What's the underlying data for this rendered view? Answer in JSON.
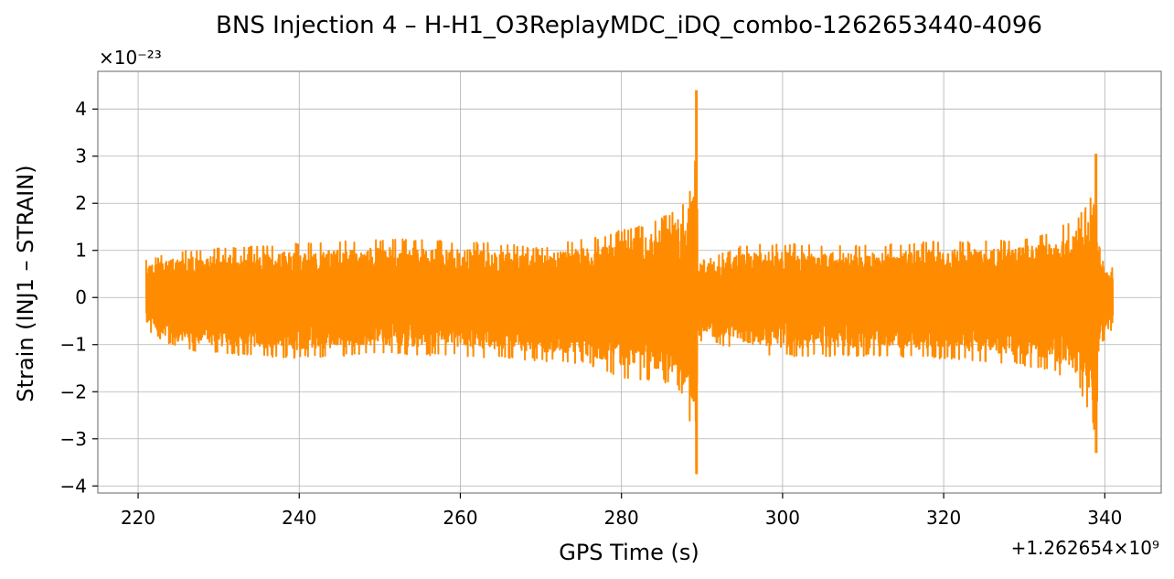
{
  "chart_data": {
    "type": "line",
    "title": "BNS Injection 4 – H-H1_O3ReplayMDC_iDQ_combo-1262653440-4096",
    "xlabel": "GPS Time (s)",
    "ylabel": "Strain (INJ1 – STRAIN)",
    "y_multiplier_label": "×10⁻²³",
    "x_offset_label": "+1.262654×10⁹",
    "xlim": [
      215,
      347
    ],
    "ylim": [
      -4.15,
      4.8
    ],
    "x_ticks": [
      220,
      240,
      260,
      280,
      300,
      320,
      340
    ],
    "x_tick_labels": [
      "220",
      "240",
      "260",
      "280",
      "300",
      "320",
      "340"
    ],
    "y_ticks": [
      -4,
      -3,
      -2,
      -1,
      0,
      1,
      2,
      3,
      4
    ],
    "y_tick_labels": [
      "−4",
      "−3",
      "−2",
      "−1",
      "0",
      "1",
      "2",
      "3",
      "4"
    ],
    "grid": true,
    "series": [
      {
        "color": "#ff8c00",
        "x_range": [
          221,
          341
        ],
        "envelope": {
          "x": [
            221,
            225,
            230,
            240,
            250,
            260,
            265,
            270,
            275,
            278,
            280,
            282,
            284,
            286,
            287,
            288,
            288.6,
            289.0,
            289.3,
            289.5,
            290,
            295,
            300,
            310,
            320,
            325,
            330,
            333,
            335,
            336,
            337,
            338,
            338.5,
            338.9,
            339.2,
            339.5,
            340,
            341
          ],
          "upper": [
            0.8,
            1.0,
            1.05,
            1.15,
            1.25,
            1.2,
            1.15,
            1.05,
            1.25,
            1.3,
            1.45,
            1.5,
            1.6,
            1.8,
            1.95,
            2.1,
            2.4,
            2.9,
            4.4,
            1.0,
            0.8,
            1.1,
            1.15,
            1.1,
            1.2,
            1.2,
            1.25,
            1.4,
            1.55,
            1.65,
            1.8,
            2.0,
            2.3,
            3.05,
            1.2,
            1.0,
            0.9,
            0.6
          ],
          "lower": [
            -0.7,
            -1.1,
            -1.2,
            -1.3,
            -1.2,
            -1.25,
            -1.3,
            -1.35,
            -1.4,
            -1.55,
            -1.7,
            -1.75,
            -1.75,
            -1.85,
            -1.95,
            -2.3,
            -2.7,
            -3.1,
            -3.75,
            -1.1,
            -0.9,
            -1.15,
            -1.25,
            -1.25,
            -1.3,
            -1.35,
            -1.45,
            -1.55,
            -1.7,
            -1.8,
            -2.0,
            -2.4,
            -2.7,
            -3.3,
            -1.4,
            -1.0,
            -0.9,
            -0.65
          ]
        }
      }
    ]
  }
}
